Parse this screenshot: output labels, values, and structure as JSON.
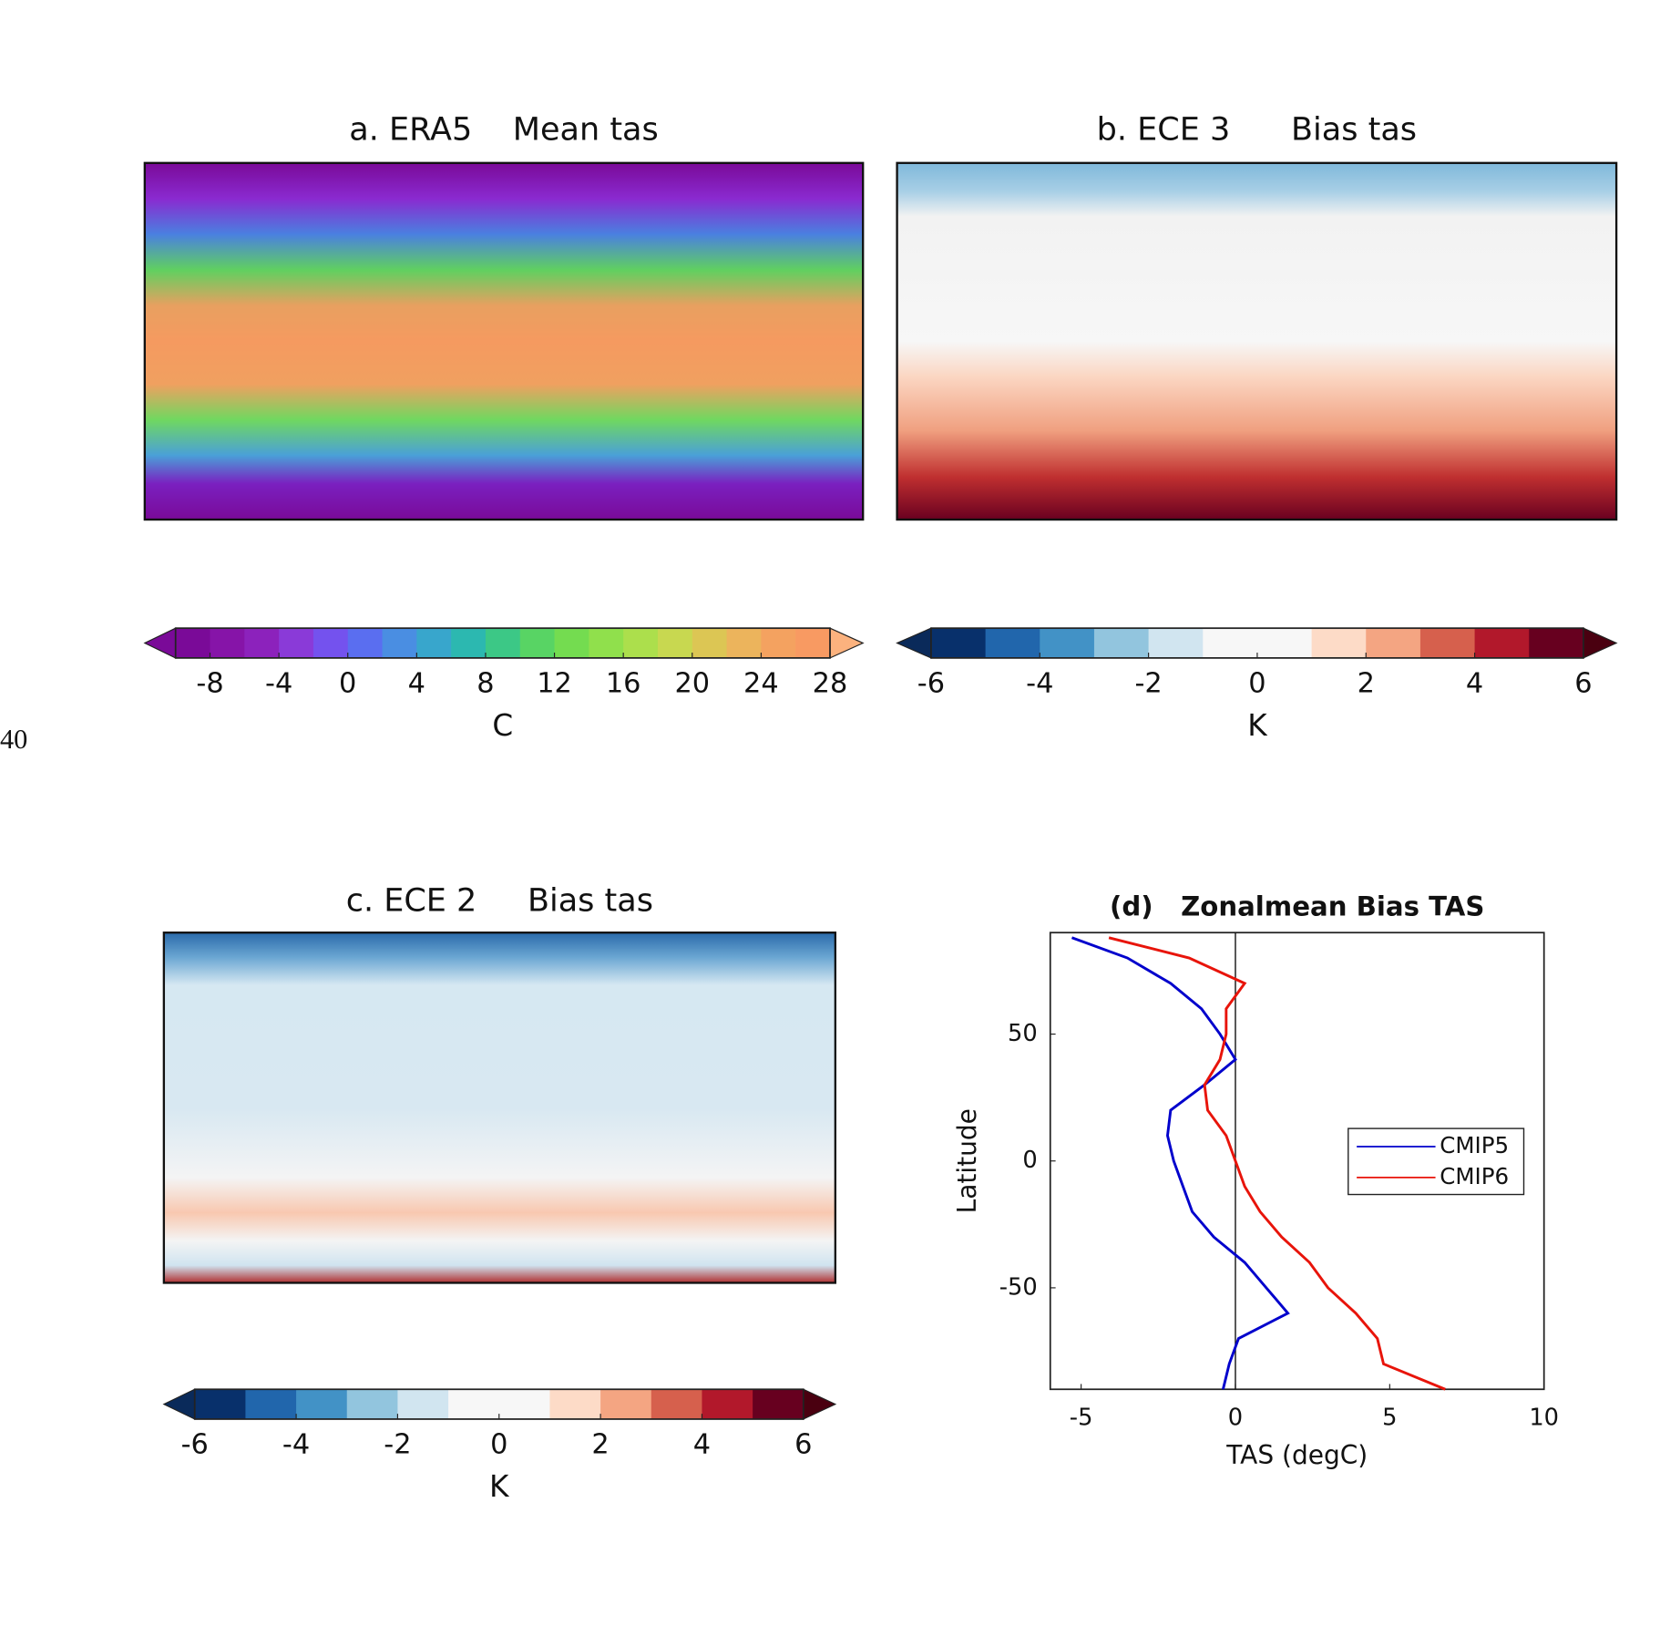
{
  "side_label": "40",
  "chart_data": [
    {
      "type": "map",
      "title": "a. ERA5    Mean tas",
      "colorbar": {
        "label": "C",
        "lim": [
          -10,
          28
        ],
        "ticks": [
          -8,
          -4,
          0,
          4,
          8,
          12,
          16,
          20,
          24,
          28
        ],
        "colors": [
          "#7a0a98",
          "#8614a8",
          "#8c22bc",
          "#8a3ad8",
          "#7452ee",
          "#5a6ef0",
          "#4a8ee2",
          "#38a6cc",
          "#2cb8b0",
          "#3cc886",
          "#58d464",
          "#74dc50",
          "#90e04c",
          "#acdf4c",
          "#c8d850",
          "#dcc654",
          "#ecb45c",
          "#f4a260",
          "#f89a62"
        ],
        "extend_colors": [
          "#7a0a98",
          "#fbb27e"
        ]
      }
    },
    {
      "type": "map",
      "title": "b. ECE 3      Bias tas",
      "colorbar": {
        "label": "K",
        "lim": [
          -6,
          6
        ],
        "ticks": [
          -6,
          -4,
          -2,
          0,
          2,
          4,
          6
        ],
        "colors": [
          "#08306b",
          "#2166ac",
          "#4292c6",
          "#92c5de",
          "#d1e5f0",
          "#f7f7f7",
          "#f7f7f7",
          "#fddbc7",
          "#f4a582",
          "#d6604d",
          "#b2182b",
          "#67001f"
        ],
        "extend_colors": [
          "#0a2a5a",
          "#4a0010"
        ]
      }
    },
    {
      "type": "map",
      "title": "c. ECE 2     Bias tas",
      "colorbar": {
        "label": "K",
        "lim": [
          -6,
          6
        ],
        "ticks": [
          -6,
          -4,
          -2,
          0,
          2,
          4,
          6
        ],
        "colors": [
          "#08306b",
          "#2166ac",
          "#4292c6",
          "#92c5de",
          "#d1e5f0",
          "#f7f7f7",
          "#f7f7f7",
          "#fddbc7",
          "#f4a582",
          "#d6604d",
          "#b2182b",
          "#67001f"
        ],
        "extend_colors": [
          "#0a2a5a",
          "#4a0010"
        ]
      }
    },
    {
      "type": "line",
      "title": "(d)   Zonalmean Bias TAS",
      "xlabel": "TAS (degC)",
      "ylabel": "Latitude",
      "y": [
        88,
        80,
        70,
        60,
        50,
        40,
        30,
        20,
        10,
        0,
        -10,
        -20,
        -30,
        -40,
        -50,
        -60,
        -70,
        -80,
        -90
      ],
      "series": [
        {
          "name": "CMIP5",
          "color": "#0000cc",
          "values": [
            -5.3,
            -3.5,
            -2.1,
            -1.1,
            -0.5,
            0,
            -1.0,
            -2.1,
            -2.2,
            -2.0,
            -1.7,
            -1.4,
            -0.7,
            0.3,
            1.0,
            1.7,
            0.1,
            -0.2,
            -0.4
          ]
        },
        {
          "name": "CMIP6",
          "color": "#e8140a",
          "values": [
            -4.1,
            -1.5,
            0.3,
            -0.3,
            -0.3,
            -0.5,
            -1.0,
            -0.9,
            -0.3,
            0.0,
            0.3,
            0.8,
            1.5,
            2.4,
            3.0,
            3.9,
            4.6,
            4.8,
            6.8
          ]
        }
      ],
      "xlim": [
        -6,
        10
      ],
      "xticks": [
        -5,
        0,
        5,
        10
      ],
      "ylim": [
        -90,
        90
      ],
      "yticks": [
        -50,
        0,
        50
      ],
      "legend": "right"
    }
  ]
}
